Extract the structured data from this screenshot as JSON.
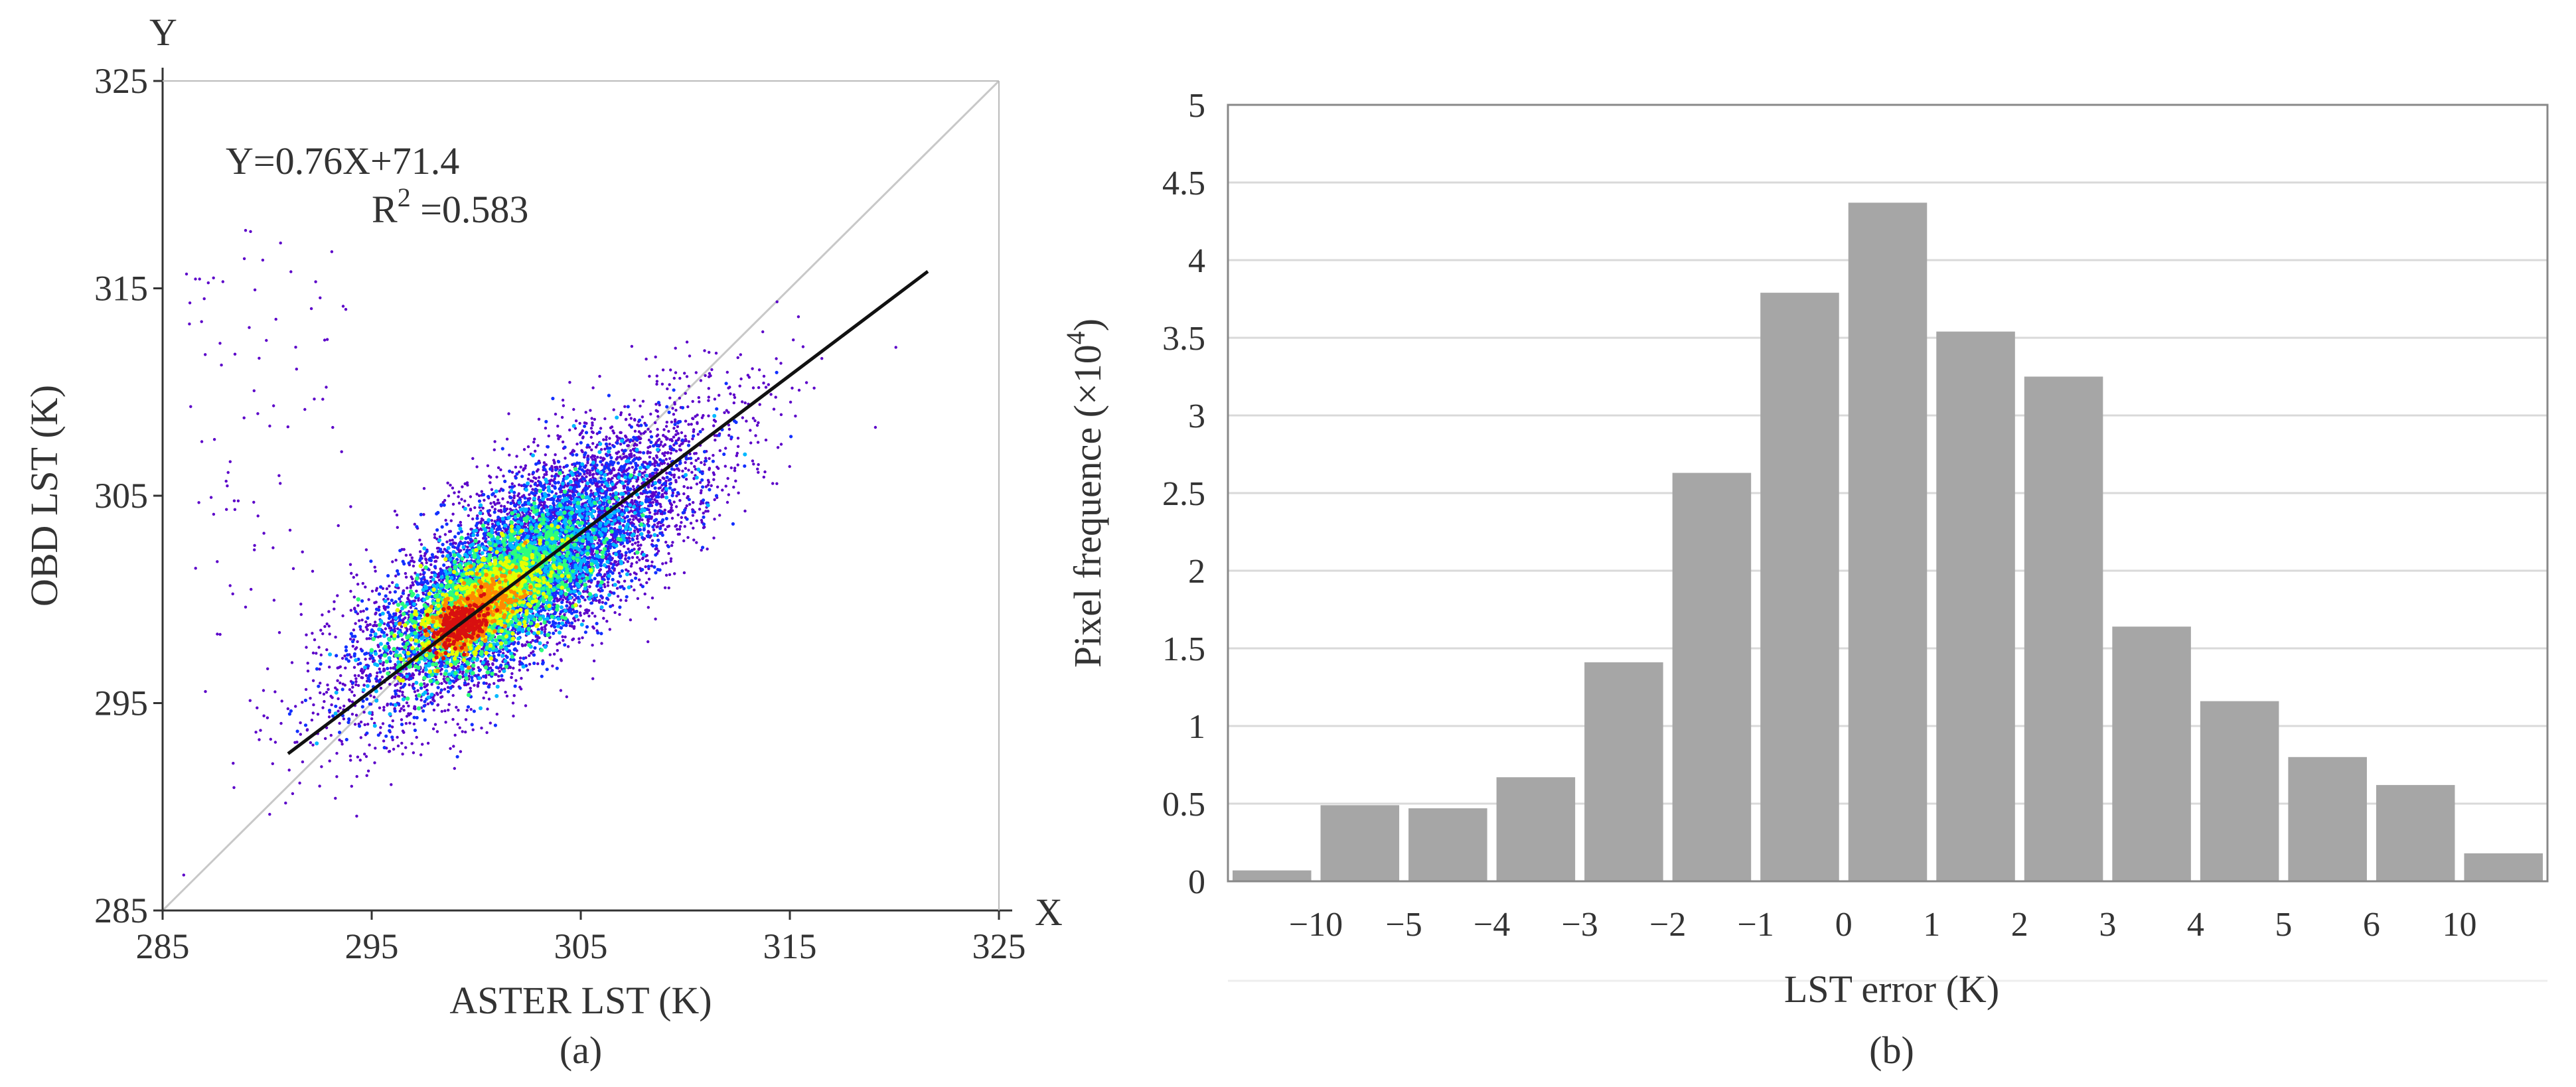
{
  "chart_data": [
    {
      "type": "scatter",
      "panel_label": "(a)",
      "xlabel": "ASTER LST (K)",
      "ylabel": "OBD LST (K)",
      "x_axis_letter": "X",
      "y_axis_letter": "Y",
      "xlim": [
        285,
        325
      ],
      "ylim": [
        285,
        325
      ],
      "xticks": [
        285,
        295,
        305,
        315,
        325
      ],
      "yticks": [
        285,
        295,
        305,
        315,
        325
      ],
      "equation": "Y=0.76X+71.4",
      "r2_prefix": "R",
      "r2_sup": "2",
      "r2_value": " =0.583",
      "fit_line": {
        "slope": 0.76,
        "intercept": 71.4,
        "x_range": [
          291,
          321.6
        ]
      },
      "reference_line": "1:1",
      "density_colors": [
        "#5b00c9",
        "#1230ff",
        "#00b8ff",
        "#2dff7a",
        "#e6ff00",
        "#ff8a00",
        "#d81010"
      ],
      "density_core": {
        "x_center": 299.3,
        "y_center": 298.8
      },
      "colors": {
        "fit_line": "#111111",
        "reference_line": "#c8c8c8",
        "axis": "#333333"
      }
    },
    {
      "type": "bar",
      "panel_label": "(b)",
      "xlabel": "LST error (K)",
      "ylabel": "Pixel frequence (×10",
      "ylabel_sup": "4",
      "ylabel_close": ")",
      "ylim": [
        0,
        5
      ],
      "yticks": [
        "0",
        "0.5",
        "1",
        "1.5",
        "2",
        "2.5",
        "3",
        "3.5",
        "4",
        "4.5",
        "5"
      ],
      "bin_edge_labels": [
        "−10",
        "−5",
        "−4",
        "−3",
        "−2",
        "−1",
        "0",
        "1",
        "2",
        "3",
        "4",
        "5",
        "6",
        "10"
      ],
      "values": [
        0.07,
        0.49,
        0.47,
        0.67,
        1.41,
        2.63,
        3.79,
        4.37,
        3.54,
        3.25,
        1.64,
        1.16,
        0.8,
        0.62,
        0.18
      ],
      "grid": "horizontal",
      "colors": {
        "bar": "#a6a6a6",
        "grid": "#d9d9d9",
        "frame": "#888888"
      }
    }
  ]
}
